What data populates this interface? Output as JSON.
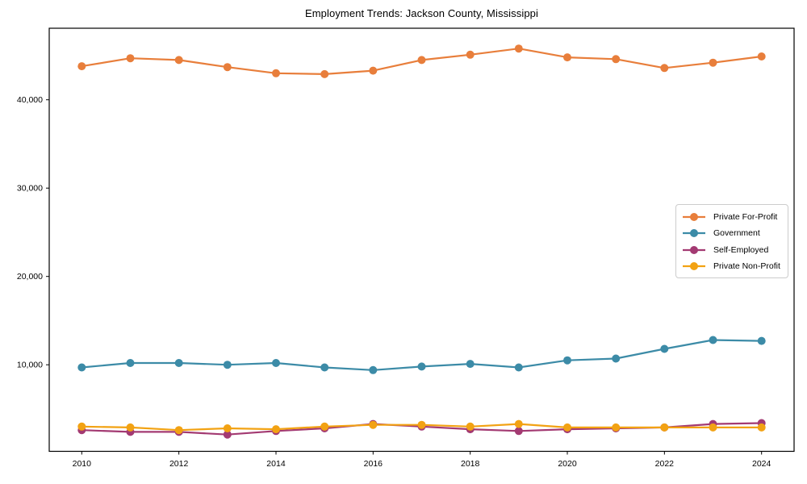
{
  "title": "Employment Trends: Jackson County, Mississippi",
  "chart_data": {
    "type": "line",
    "title": "Employment Trends: Jackson County, Mississippi",
    "xlabel": "",
    "ylabel": "",
    "grid": false,
    "legend_position": "center right",
    "x": [
      2010,
      2011,
      2012,
      2013,
      2014,
      2015,
      2016,
      2017,
      2018,
      2019,
      2020,
      2021,
      2022,
      2023,
      2024
    ],
    "xticks": [
      2010,
      2012,
      2014,
      2016,
      2018,
      2020,
      2022,
      2024
    ],
    "yticks": [
      10000,
      20000,
      30000,
      40000
    ],
    "ytick_labels": [
      "10,000",
      "20,000",
      "30,000",
      "40,000"
    ],
    "xlim": [
      2009.33,
      2024.67
    ],
    "ylim": [
      200,
      48100
    ],
    "series": [
      {
        "name": "Private For-Profit",
        "color": "#E87E3B",
        "values": [
          43800,
          44700,
          44500,
          43700,
          43000,
          42900,
          43300,
          44500,
          45100,
          45800,
          44800,
          44600,
          43600,
          44200,
          44900
        ]
      },
      {
        "name": "Government",
        "color": "#3C8BA7",
        "values": [
          9700,
          10200,
          10200,
          10000,
          10200,
          9700,
          9400,
          9800,
          10100,
          9700,
          10500,
          10700,
          11800,
          12800,
          12700
        ]
      },
      {
        "name": "Self-Employed",
        "color": "#A33A72",
        "values": [
          2600,
          2400,
          2400,
          2100,
          2500,
          2800,
          3300,
          3000,
          2700,
          2500,
          2700,
          2800,
          2900,
          3300,
          3400
        ]
      },
      {
        "name": "Private Non-Profit",
        "color": "#F2A213",
        "values": [
          3000,
          2900,
          2600,
          2800,
          2700,
          3000,
          3200,
          3200,
          3000,
          3300,
          2900,
          2900,
          2900,
          2900,
          2900
        ]
      }
    ],
    "colors": {
      "background": "#ffffff",
      "axis": "#000000",
      "tick_text": "#000000",
      "legend_border": "#cccccc"
    }
  }
}
